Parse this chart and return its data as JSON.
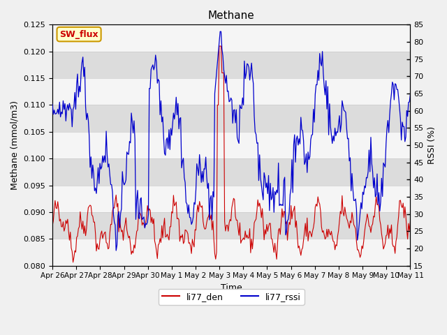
{
  "title": "Methane",
  "xlabel": "Time",
  "ylabel_left": "Methane (mmol/m3)",
  "ylabel_right": "RSSI (%)",
  "ylim_left": [
    0.08,
    0.125
  ],
  "ylim_right": [
    15,
    85
  ],
  "yticks_left": [
    0.08,
    0.085,
    0.09,
    0.095,
    0.1,
    0.105,
    0.11,
    0.115,
    0.12,
    0.125
  ],
  "yticks_right": [
    15,
    20,
    25,
    30,
    35,
    40,
    45,
    50,
    55,
    60,
    65,
    70,
    75,
    80,
    85
  ],
  "xtick_labels": [
    "Apr 26",
    "Apr 27",
    "Apr 28",
    "Apr 29",
    "Apr 30",
    "May 1",
    "May 2",
    "May 3",
    "May 4",
    "May 5",
    "May 6",
    "May 7",
    "May 8",
    "May 9",
    "May 10",
    "May 11"
  ],
  "color_den": "#cc0000",
  "color_rssi": "#0000cc",
  "legend_labels": [
    "li77_den",
    "li77_rssi"
  ],
  "sw_flux_label": "SW_flux",
  "sw_flux_bg": "#ffffcc",
  "sw_flux_border": "#cc9900",
  "sw_flux_text_color": "#cc0000",
  "background_color": "#e8e8e8",
  "band_colors": [
    "#ffffff",
    "#d8d8d8"
  ],
  "grid_color": "#cccccc",
  "num_points": 400
}
